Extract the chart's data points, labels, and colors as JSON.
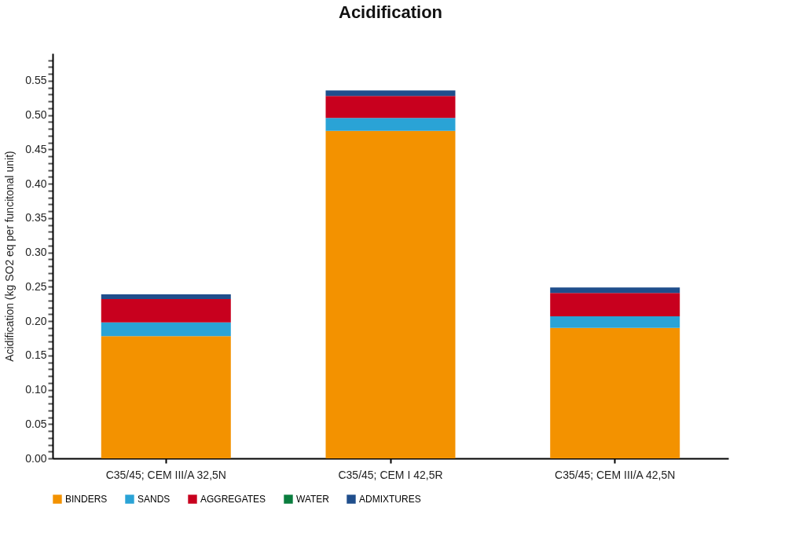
{
  "chart_data": {
    "type": "bar",
    "title": "Acidification",
    "ylabel": "Acidification (kg SO2 eq per funcitonal unit)",
    "categories": [
      "C35/45; CEM III/A 32,5N",
      "C35/45; CEM I 42,5R",
      "C35/45; CEM III/A 42,5N"
    ],
    "stacked": true,
    "grid": false,
    "legend": "bottom",
    "ylim": [
      0,
      0.59
    ],
    "yticks": [
      {
        "value": 0,
        "label": "0.00"
      },
      {
        "value": 0.01,
        "label": null
      },
      {
        "value": 0.02,
        "label": null
      },
      {
        "value": 0.03,
        "label": null
      },
      {
        "value": 0.04,
        "label": null
      },
      {
        "value": 0.05,
        "label": "0.05"
      },
      {
        "value": 0.06,
        "label": null
      },
      {
        "value": 0.07,
        "label": null
      },
      {
        "value": 0.08,
        "label": null
      },
      {
        "value": 0.09,
        "label": null
      },
      {
        "value": 0.1,
        "label": "0.10"
      },
      {
        "value": 0.11,
        "label": null
      },
      {
        "value": 0.12,
        "label": null
      },
      {
        "value": 0.13,
        "label": null
      },
      {
        "value": 0.14,
        "label": null
      },
      {
        "value": 0.15,
        "label": "0.15"
      },
      {
        "value": 0.16,
        "label": null
      },
      {
        "value": 0.17,
        "label": null
      },
      {
        "value": 0.18,
        "label": null
      },
      {
        "value": 0.19,
        "label": null
      },
      {
        "value": 0.2,
        "label": "0.20"
      },
      {
        "value": 0.21,
        "label": null
      },
      {
        "value": 0.22,
        "label": null
      },
      {
        "value": 0.23,
        "label": null
      },
      {
        "value": 0.24,
        "label": null
      },
      {
        "value": 0.25,
        "label": "0.25"
      },
      {
        "value": 0.26,
        "label": null
      },
      {
        "value": 0.27,
        "label": null
      },
      {
        "value": 0.28,
        "label": null
      },
      {
        "value": 0.29,
        "label": null
      },
      {
        "value": 0.3,
        "label": "0.30"
      },
      {
        "value": 0.31,
        "label": null
      },
      {
        "value": 0.32,
        "label": null
      },
      {
        "value": 0.33,
        "label": null
      },
      {
        "value": 0.34,
        "label": null
      },
      {
        "value": 0.35,
        "label": "0.35"
      },
      {
        "value": 0.36,
        "label": null
      },
      {
        "value": 0.37,
        "label": null
      },
      {
        "value": 0.38,
        "label": null
      },
      {
        "value": 0.39,
        "label": null
      },
      {
        "value": 0.4,
        "label": "0.40"
      },
      {
        "value": 0.41,
        "label": null
      },
      {
        "value": 0.42,
        "label": null
      },
      {
        "value": 0.43,
        "label": null
      },
      {
        "value": 0.44,
        "label": null
      },
      {
        "value": 0.45,
        "label": "0.45"
      },
      {
        "value": 0.46,
        "label": null
      },
      {
        "value": 0.47,
        "label": null
      },
      {
        "value": 0.48,
        "label": null
      },
      {
        "value": 0.49,
        "label": null
      },
      {
        "value": 0.5,
        "label": "0.50"
      },
      {
        "value": 0.51,
        "label": null
      },
      {
        "value": 0.52,
        "label": null
      },
      {
        "value": 0.53,
        "label": null
      },
      {
        "value": 0.54,
        "label": null
      },
      {
        "value": 0.55,
        "label": "0.55"
      },
      {
        "value": 0.56,
        "label": null
      },
      {
        "value": 0.57,
        "label": null
      },
      {
        "value": 0.58,
        "label": null
      }
    ],
    "series": [
      {
        "name": "BINDERS",
        "color": "#f39200",
        "values": [
          0.178,
          0.477,
          0.19
        ]
      },
      {
        "name": "SANDS",
        "color": "#2aa3d6",
        "values": [
          0.02,
          0.019,
          0.017
        ]
      },
      {
        "name": "AGGREGATES",
        "color": "#c8001e",
        "values": [
          0.034,
          0.032,
          0.034
        ]
      },
      {
        "name": "WATER",
        "color": "#0a7d3e",
        "values": [
          0,
          0,
          0
        ]
      },
      {
        "name": "ADMIXTURES",
        "color": "#1f4e8c",
        "values": [
          0.007,
          0.008,
          0.008
        ]
      }
    ]
  }
}
